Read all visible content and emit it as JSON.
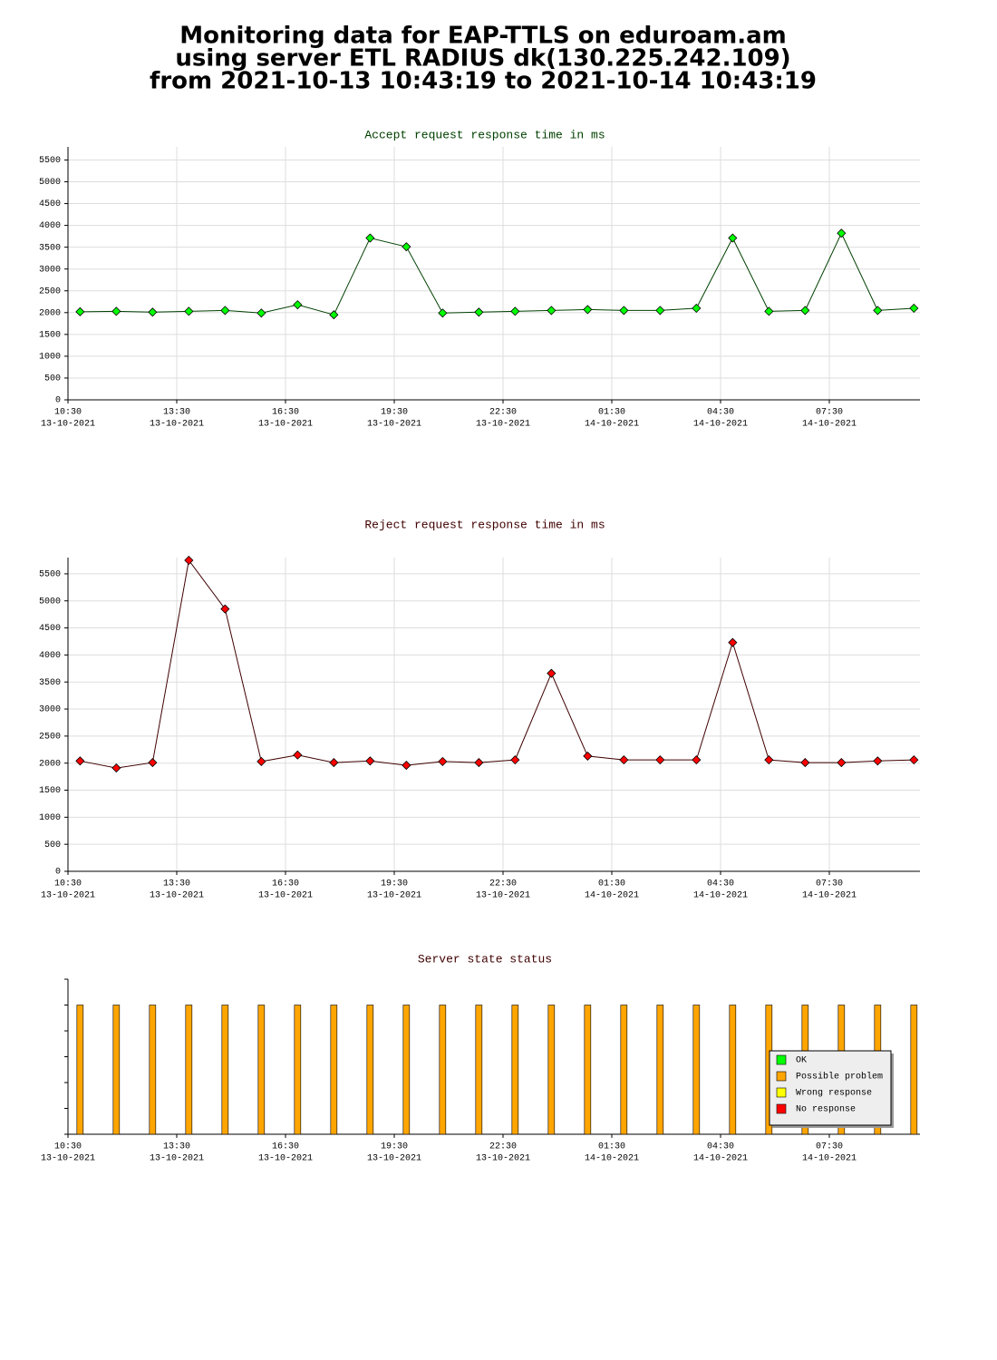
{
  "title": [
    "Monitoring data for EAP-TTLS on eduroam.am",
    "using server ETL RADIUS dk(130.225.242.109)",
    "from 2021-10-13 10:43:19 to 2021-10-14 10:43:19"
  ],
  "chart_data": [
    {
      "type": "line",
      "title": "Accept request response time in ms",
      "title_color": "#004000",
      "grid": true,
      "x": [
        "2021-10-13T10:50",
        "2021-10-13T11:50",
        "2021-10-13T12:50",
        "2021-10-13T13:50",
        "2021-10-13T14:50",
        "2021-10-13T15:50",
        "2021-10-13T16:50",
        "2021-10-13T17:50",
        "2021-10-13T18:50",
        "2021-10-13T19:50",
        "2021-10-13T20:50",
        "2021-10-13T21:50",
        "2021-10-13T22:50",
        "2021-10-13T23:50",
        "2021-10-14T00:50",
        "2021-10-14T01:50",
        "2021-10-14T02:50",
        "2021-10-14T03:50",
        "2021-10-14T04:50",
        "2021-10-14T05:50",
        "2021-10-14T06:50",
        "2021-10-14T07:50",
        "2021-10-14T08:50",
        "2021-10-14T09:50"
      ],
      "series": [
        {
          "color": "#004000",
          "marker_color": "#00ff00",
          "values": [
            2020,
            2030,
            2010,
            2030,
            2050,
            1990,
            2180,
            1950,
            3710,
            3510,
            1990,
            2010,
            2030,
            2050,
            2070,
            2050,
            2050,
            2100,
            3710,
            2030,
            2050,
            3820,
            2050,
            2100
          ]
        }
      ],
      "xlim": [
        "2021-10-13T10:30",
        "2021-10-14T10:00"
      ],
      "xticks": [
        {
          "value": "2021-10-13T10:30",
          "label": [
            "10:30",
            "13-10-2021"
          ]
        },
        {
          "value": "2021-10-13T13:30",
          "label": [
            "13:30",
            "13-10-2021"
          ]
        },
        {
          "value": "2021-10-13T16:30",
          "label": [
            "16:30",
            "13-10-2021"
          ]
        },
        {
          "value": "2021-10-13T19:30",
          "label": [
            "19:30",
            "13-10-2021"
          ]
        },
        {
          "value": "2021-10-13T22:30",
          "label": [
            "22:30",
            "13-10-2021"
          ]
        },
        {
          "value": "2021-10-14T01:30",
          "label": [
            "01:30",
            "14-10-2021"
          ]
        },
        {
          "value": "2021-10-14T04:30",
          "label": [
            "04:30",
            "14-10-2021"
          ]
        },
        {
          "value": "2021-10-14T07:30",
          "label": [
            "07:30",
            "14-10-2021"
          ]
        }
      ],
      "ylim": [
        0,
        5800
      ],
      "yticks": [
        0,
        500,
        1000,
        1500,
        2000,
        2500,
        3000,
        3500,
        4000,
        4500,
        5000,
        5500
      ]
    },
    {
      "type": "line",
      "title": "Reject request response time in ms",
      "title_color": "#400000",
      "grid": true,
      "x": [
        "2021-10-13T10:50",
        "2021-10-13T11:50",
        "2021-10-13T12:50",
        "2021-10-13T13:50",
        "2021-10-13T14:50",
        "2021-10-13T15:50",
        "2021-10-13T16:50",
        "2021-10-13T17:50",
        "2021-10-13T18:50",
        "2021-10-13T19:50",
        "2021-10-13T20:50",
        "2021-10-13T21:50",
        "2021-10-13T22:50",
        "2021-10-13T23:50",
        "2021-10-14T00:50",
        "2021-10-14T01:50",
        "2021-10-14T02:50",
        "2021-10-14T03:50",
        "2021-10-14T04:50",
        "2021-10-14T05:50",
        "2021-10-14T06:50",
        "2021-10-14T07:50",
        "2021-10-14T08:50",
        "2021-10-14T09:50"
      ],
      "series": [
        {
          "color": "#400000",
          "marker_color": "#ff0000",
          "values": [
            2040,
            1910,
            2010,
            5750,
            4850,
            2030,
            2150,
            2010,
            2040,
            1960,
            2030,
            2010,
            2060,
            3660,
            2130,
            2060,
            2060,
            2060,
            4230,
            2060,
            2010,
            2010,
            2040,
            2060
          ]
        }
      ],
      "xlim": [
        "2021-10-13T10:30",
        "2021-10-14T10:00"
      ],
      "xticks": [
        {
          "value": "2021-10-13T10:30",
          "label": [
            "10:30",
            "13-10-2021"
          ]
        },
        {
          "value": "2021-10-13T13:30",
          "label": [
            "13:30",
            "13-10-2021"
          ]
        },
        {
          "value": "2021-10-13T16:30",
          "label": [
            "16:30",
            "13-10-2021"
          ]
        },
        {
          "value": "2021-10-13T19:30",
          "label": [
            "19:30",
            "13-10-2021"
          ]
        },
        {
          "value": "2021-10-13T22:30",
          "label": [
            "22:30",
            "13-10-2021"
          ]
        },
        {
          "value": "2021-10-14T01:30",
          "label": [
            "01:30",
            "14-10-2021"
          ]
        },
        {
          "value": "2021-10-14T04:30",
          "label": [
            "04:30",
            "14-10-2021"
          ]
        },
        {
          "value": "2021-10-14T07:30",
          "label": [
            "07:30",
            "14-10-2021"
          ]
        }
      ],
      "ylim": [
        0,
        5800
      ],
      "yticks": [
        0,
        500,
        1000,
        1500,
        2000,
        2500,
        3000,
        3500,
        4000,
        4500,
        5000,
        5500
      ]
    },
    {
      "type": "bar",
      "title": "Server state status",
      "title_color": "#400000",
      "grid": false,
      "legend": "lower right",
      "ytick_labels": false,
      "x": [
        "2021-10-13T10:50",
        "2021-10-13T11:50",
        "2021-10-13T12:50",
        "2021-10-13T13:50",
        "2021-10-13T14:50",
        "2021-10-13T15:50",
        "2021-10-13T16:50",
        "2021-10-13T17:50",
        "2021-10-13T18:50",
        "2021-10-13T19:50",
        "2021-10-13T20:50",
        "2021-10-13T21:50",
        "2021-10-13T22:50",
        "2021-10-13T23:50",
        "2021-10-14T00:50",
        "2021-10-14T01:50",
        "2021-10-14T02:50",
        "2021-10-14T03:50",
        "2021-10-14T04:50",
        "2021-10-14T05:50",
        "2021-10-14T06:50",
        "2021-10-14T07:50",
        "2021-10-14T08:50",
        "2021-10-14T09:50"
      ],
      "series": [
        {
          "name": "OK",
          "color": "#00ff00",
          "values": [
            0,
            0,
            0,
            0,
            0,
            0,
            0,
            0,
            0,
            0,
            0,
            0,
            0,
            0,
            0,
            0,
            0,
            0,
            0,
            0,
            0,
            0,
            0,
            0
          ]
        },
        {
          "name": "Possible problem",
          "color": "#ffa500",
          "values": [
            1,
            1,
            1,
            1,
            1,
            1,
            1,
            1,
            1,
            1,
            1,
            1,
            1,
            1,
            1,
            1,
            1,
            1,
            1,
            1,
            1,
            1,
            1,
            1
          ]
        },
        {
          "name": "Wrong response",
          "color": "#ffff00",
          "values": [
            0,
            0,
            0,
            0,
            0,
            0,
            0,
            0,
            0,
            0,
            0,
            0,
            0,
            0,
            0,
            0,
            0,
            0,
            0,
            0,
            0,
            0,
            0,
            0
          ]
        },
        {
          "name": "No response",
          "color": "#ff0000",
          "values": [
            0,
            0,
            0,
            0,
            0,
            0,
            0,
            0,
            0,
            0,
            0,
            0,
            0,
            0,
            0,
            0,
            0,
            0,
            0,
            0,
            0,
            0,
            0,
            0
          ]
        }
      ],
      "xlim": [
        "2021-10-13T10:30",
        "2021-10-14T10:00"
      ],
      "xticks": [
        {
          "value": "2021-10-13T10:30",
          "label": [
            "10:30",
            "13-10-2021"
          ]
        },
        {
          "value": "2021-10-13T13:30",
          "label": [
            "13:30",
            "13-10-2021"
          ]
        },
        {
          "value": "2021-10-13T16:30",
          "label": [
            "16:30",
            "13-10-2021"
          ]
        },
        {
          "value": "2021-10-13T19:30",
          "label": [
            "19:30",
            "13-10-2021"
          ]
        },
        {
          "value": "2021-10-13T22:30",
          "label": [
            "22:30",
            "13-10-2021"
          ]
        },
        {
          "value": "2021-10-14T01:30",
          "label": [
            "01:30",
            "14-10-2021"
          ]
        },
        {
          "value": "2021-10-14T04:30",
          "label": [
            "04:30",
            "14-10-2021"
          ]
        },
        {
          "value": "2021-10-14T07:30",
          "label": [
            "07:30",
            "14-10-2021"
          ]
        }
      ],
      "ylim": [
        0,
        1.2
      ],
      "yticks": [
        0,
        0.2,
        0.4,
        0.6,
        0.8,
        1,
        1.2
      ]
    }
  ]
}
